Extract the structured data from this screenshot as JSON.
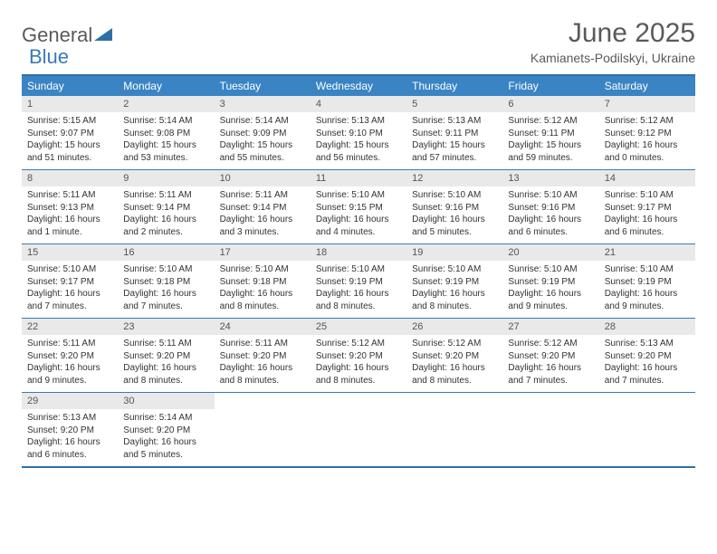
{
  "logo": {
    "text1": "General",
    "text2": "Blue"
  },
  "title": "June 2025",
  "location": "Kamianets-Podilskyi, Ukraine",
  "colors": {
    "header_bg": "#3a84c4",
    "header_text": "#ffffff",
    "border": "#3a7ab8",
    "daynum_bg": "#e9e9e9",
    "text": "#333333",
    "title_text": "#5a5a5a",
    "logo_blue": "#3a7ab8"
  },
  "day_headers": [
    "Sunday",
    "Monday",
    "Tuesday",
    "Wednesday",
    "Thursday",
    "Friday",
    "Saturday"
  ],
  "weeks": [
    [
      {
        "n": "1",
        "sr": "Sunrise: 5:15 AM",
        "ss": "Sunset: 9:07 PM",
        "d1": "Daylight: 15 hours",
        "d2": "and 51 minutes."
      },
      {
        "n": "2",
        "sr": "Sunrise: 5:14 AM",
        "ss": "Sunset: 9:08 PM",
        "d1": "Daylight: 15 hours",
        "d2": "and 53 minutes."
      },
      {
        "n": "3",
        "sr": "Sunrise: 5:14 AM",
        "ss": "Sunset: 9:09 PM",
        "d1": "Daylight: 15 hours",
        "d2": "and 55 minutes."
      },
      {
        "n": "4",
        "sr": "Sunrise: 5:13 AM",
        "ss": "Sunset: 9:10 PM",
        "d1": "Daylight: 15 hours",
        "d2": "and 56 minutes."
      },
      {
        "n": "5",
        "sr": "Sunrise: 5:13 AM",
        "ss": "Sunset: 9:11 PM",
        "d1": "Daylight: 15 hours",
        "d2": "and 57 minutes."
      },
      {
        "n": "6",
        "sr": "Sunrise: 5:12 AM",
        "ss": "Sunset: 9:11 PM",
        "d1": "Daylight: 15 hours",
        "d2": "and 59 minutes."
      },
      {
        "n": "7",
        "sr": "Sunrise: 5:12 AM",
        "ss": "Sunset: 9:12 PM",
        "d1": "Daylight: 16 hours",
        "d2": "and 0 minutes."
      }
    ],
    [
      {
        "n": "8",
        "sr": "Sunrise: 5:11 AM",
        "ss": "Sunset: 9:13 PM",
        "d1": "Daylight: 16 hours",
        "d2": "and 1 minute."
      },
      {
        "n": "9",
        "sr": "Sunrise: 5:11 AM",
        "ss": "Sunset: 9:14 PM",
        "d1": "Daylight: 16 hours",
        "d2": "and 2 minutes."
      },
      {
        "n": "10",
        "sr": "Sunrise: 5:11 AM",
        "ss": "Sunset: 9:14 PM",
        "d1": "Daylight: 16 hours",
        "d2": "and 3 minutes."
      },
      {
        "n": "11",
        "sr": "Sunrise: 5:10 AM",
        "ss": "Sunset: 9:15 PM",
        "d1": "Daylight: 16 hours",
        "d2": "and 4 minutes."
      },
      {
        "n": "12",
        "sr": "Sunrise: 5:10 AM",
        "ss": "Sunset: 9:16 PM",
        "d1": "Daylight: 16 hours",
        "d2": "and 5 minutes."
      },
      {
        "n": "13",
        "sr": "Sunrise: 5:10 AM",
        "ss": "Sunset: 9:16 PM",
        "d1": "Daylight: 16 hours",
        "d2": "and 6 minutes."
      },
      {
        "n": "14",
        "sr": "Sunrise: 5:10 AM",
        "ss": "Sunset: 9:17 PM",
        "d1": "Daylight: 16 hours",
        "d2": "and 6 minutes."
      }
    ],
    [
      {
        "n": "15",
        "sr": "Sunrise: 5:10 AM",
        "ss": "Sunset: 9:17 PM",
        "d1": "Daylight: 16 hours",
        "d2": "and 7 minutes."
      },
      {
        "n": "16",
        "sr": "Sunrise: 5:10 AM",
        "ss": "Sunset: 9:18 PM",
        "d1": "Daylight: 16 hours",
        "d2": "and 7 minutes."
      },
      {
        "n": "17",
        "sr": "Sunrise: 5:10 AM",
        "ss": "Sunset: 9:18 PM",
        "d1": "Daylight: 16 hours",
        "d2": "and 8 minutes."
      },
      {
        "n": "18",
        "sr": "Sunrise: 5:10 AM",
        "ss": "Sunset: 9:19 PM",
        "d1": "Daylight: 16 hours",
        "d2": "and 8 minutes."
      },
      {
        "n": "19",
        "sr": "Sunrise: 5:10 AM",
        "ss": "Sunset: 9:19 PM",
        "d1": "Daylight: 16 hours",
        "d2": "and 8 minutes."
      },
      {
        "n": "20",
        "sr": "Sunrise: 5:10 AM",
        "ss": "Sunset: 9:19 PM",
        "d1": "Daylight: 16 hours",
        "d2": "and 9 minutes."
      },
      {
        "n": "21",
        "sr": "Sunrise: 5:10 AM",
        "ss": "Sunset: 9:19 PM",
        "d1": "Daylight: 16 hours",
        "d2": "and 9 minutes."
      }
    ],
    [
      {
        "n": "22",
        "sr": "Sunrise: 5:11 AM",
        "ss": "Sunset: 9:20 PM",
        "d1": "Daylight: 16 hours",
        "d2": "and 9 minutes."
      },
      {
        "n": "23",
        "sr": "Sunrise: 5:11 AM",
        "ss": "Sunset: 9:20 PM",
        "d1": "Daylight: 16 hours",
        "d2": "and 8 minutes."
      },
      {
        "n": "24",
        "sr": "Sunrise: 5:11 AM",
        "ss": "Sunset: 9:20 PM",
        "d1": "Daylight: 16 hours",
        "d2": "and 8 minutes."
      },
      {
        "n": "25",
        "sr": "Sunrise: 5:12 AM",
        "ss": "Sunset: 9:20 PM",
        "d1": "Daylight: 16 hours",
        "d2": "and 8 minutes."
      },
      {
        "n": "26",
        "sr": "Sunrise: 5:12 AM",
        "ss": "Sunset: 9:20 PM",
        "d1": "Daylight: 16 hours",
        "d2": "and 8 minutes."
      },
      {
        "n": "27",
        "sr": "Sunrise: 5:12 AM",
        "ss": "Sunset: 9:20 PM",
        "d1": "Daylight: 16 hours",
        "d2": "and 7 minutes."
      },
      {
        "n": "28",
        "sr": "Sunrise: 5:13 AM",
        "ss": "Sunset: 9:20 PM",
        "d1": "Daylight: 16 hours",
        "d2": "and 7 minutes."
      }
    ],
    [
      {
        "n": "29",
        "sr": "Sunrise: 5:13 AM",
        "ss": "Sunset: 9:20 PM",
        "d1": "Daylight: 16 hours",
        "d2": "and 6 minutes."
      },
      {
        "n": "30",
        "sr": "Sunrise: 5:14 AM",
        "ss": "Sunset: 9:20 PM",
        "d1": "Daylight: 16 hours",
        "d2": "and 5 minutes."
      },
      null,
      null,
      null,
      null,
      null
    ]
  ]
}
